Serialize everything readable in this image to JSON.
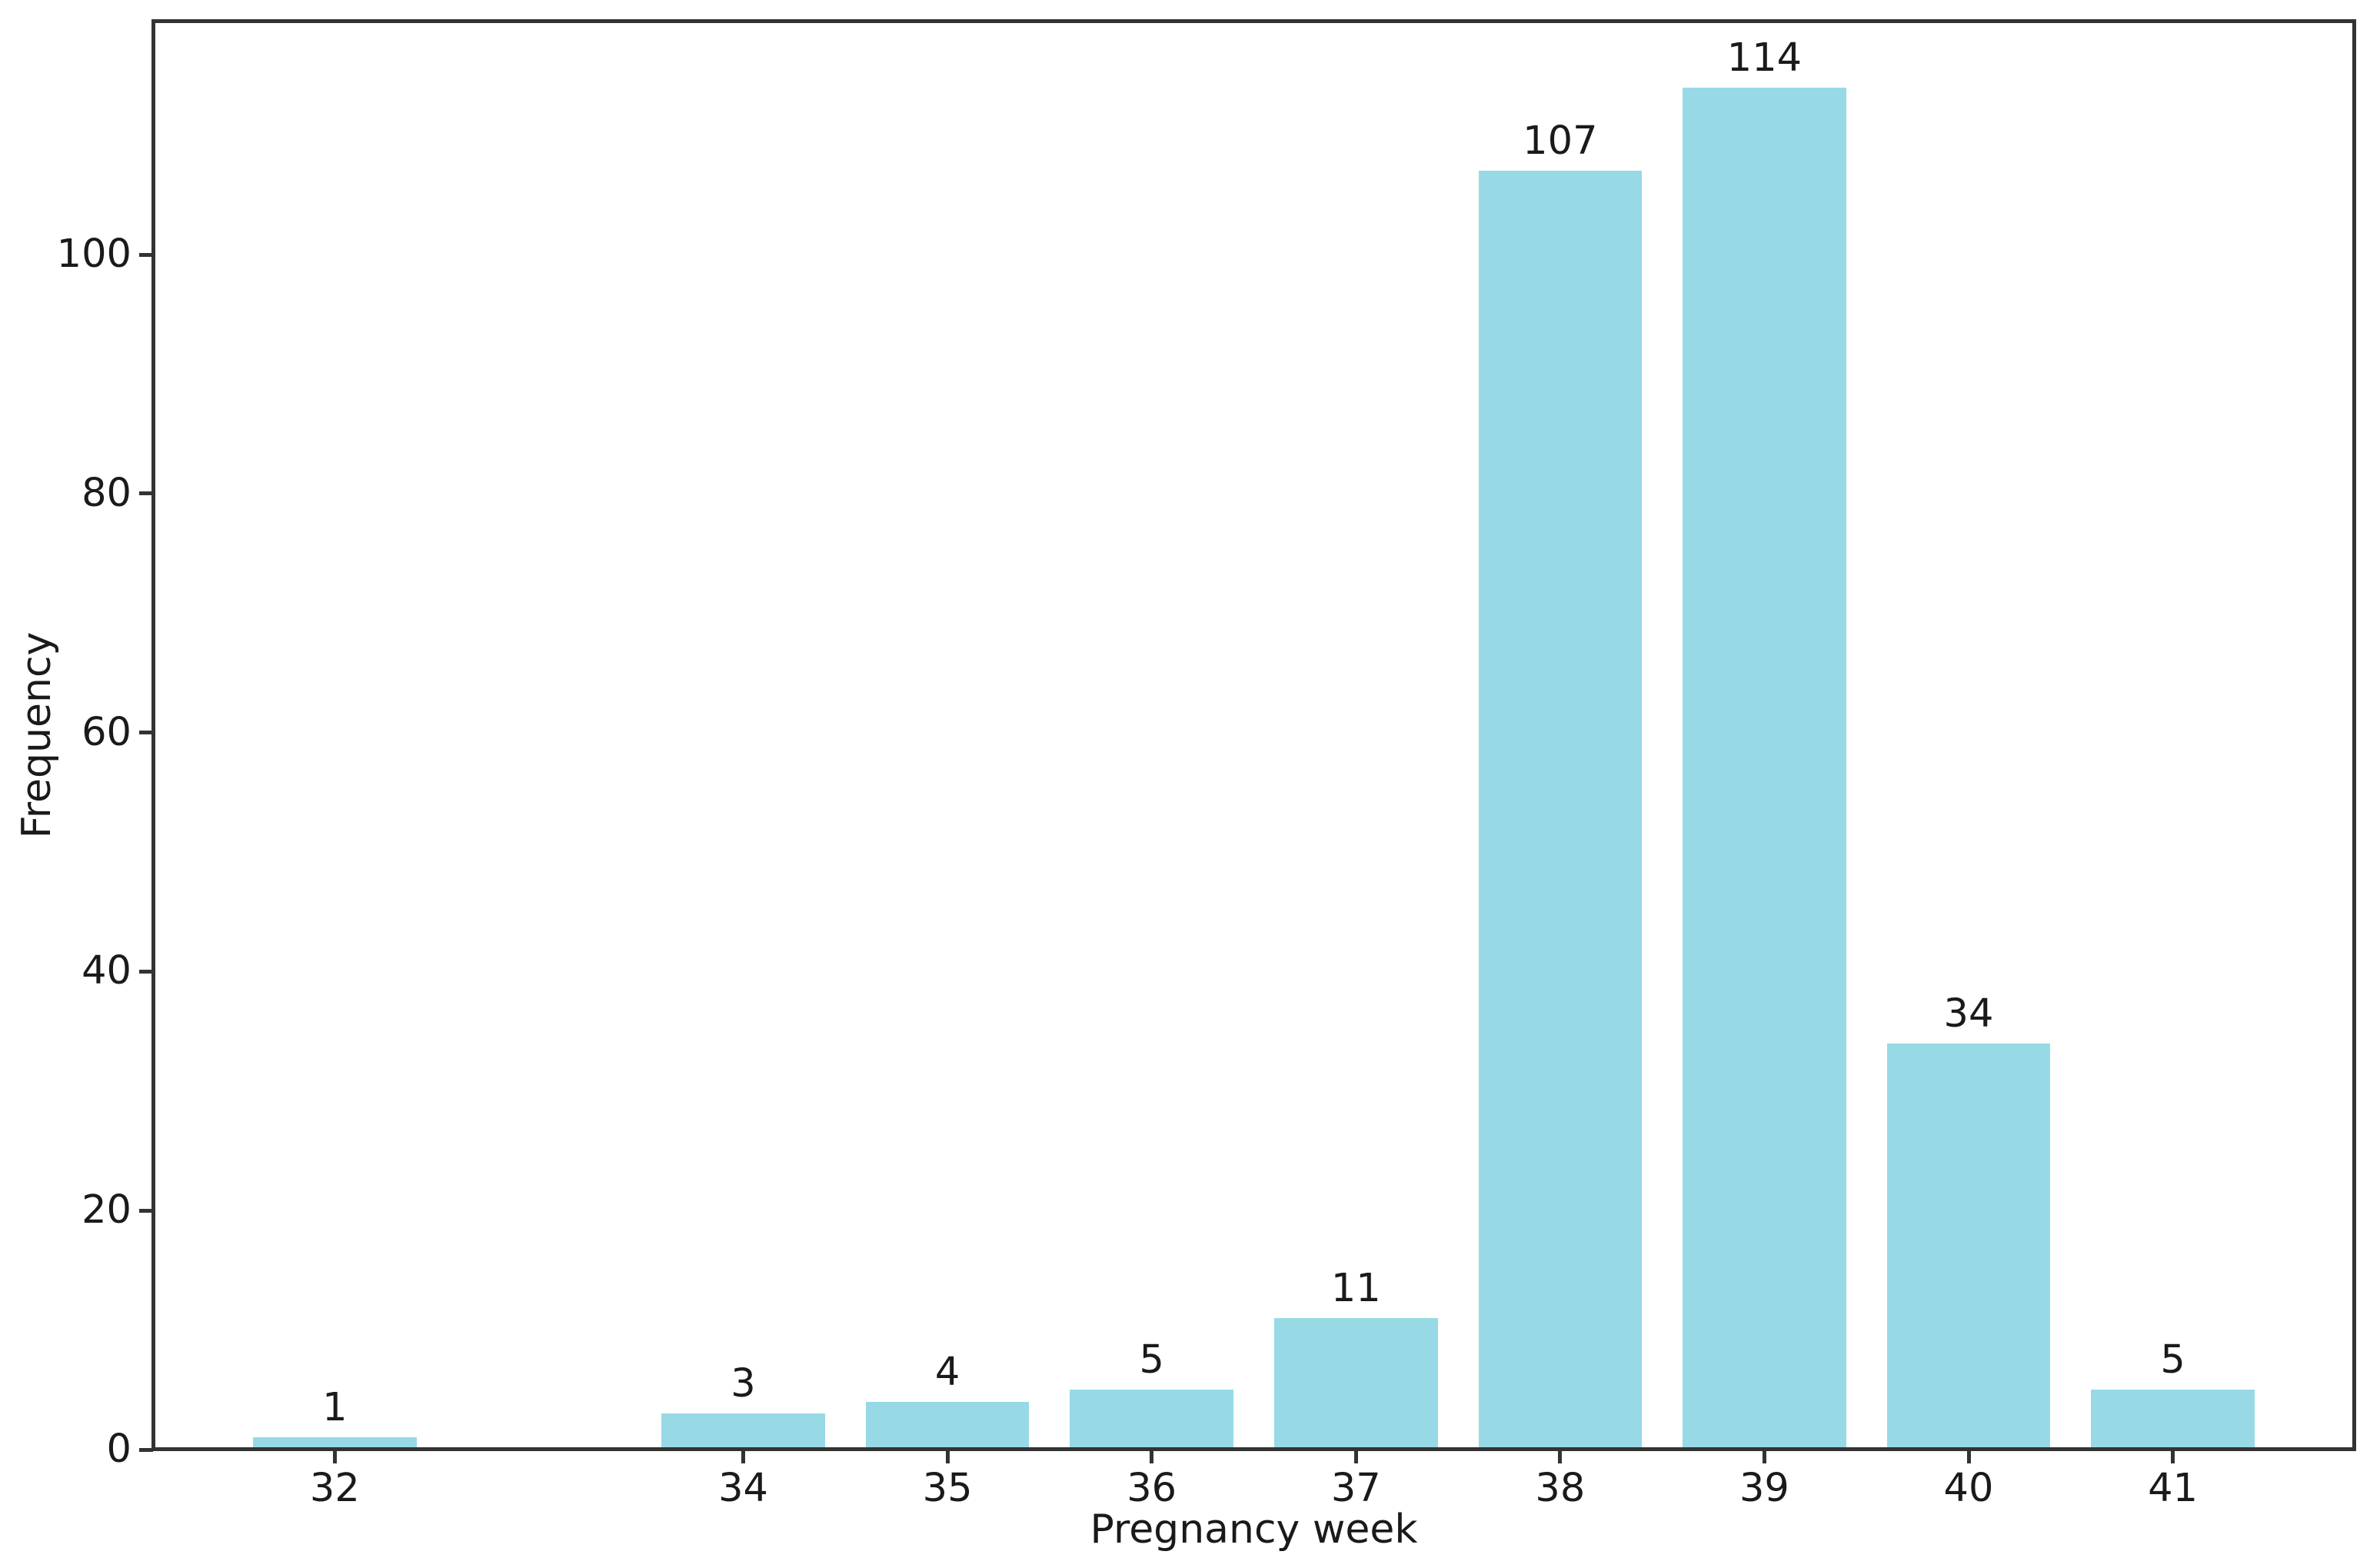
{
  "chart_data": {
    "type": "bar",
    "title": "",
    "xlabel": "Pregnancy week",
    "ylabel": "Frequency",
    "categories": [
      "32",
      "34",
      "35",
      "36",
      "37",
      "38",
      "39",
      "40",
      "41"
    ],
    "x_positions": [
      32,
      34,
      35,
      36,
      37,
      38,
      39,
      40,
      41
    ],
    "values": [
      1,
      3,
      4,
      5,
      11,
      107,
      114,
      34,
      5
    ],
    "bar_value_labels": [
      "1",
      "3",
      "4",
      "5",
      "11",
      "107",
      "114",
      "34",
      "5"
    ],
    "yticks": [
      0,
      20,
      40,
      60,
      80,
      100
    ],
    "ytick_labels": [
      "0",
      "20",
      "40",
      "60",
      "80",
      "100"
    ],
    "ylim": [
      0,
      120
    ],
    "xlim": [
      31.11,
      41.89
    ],
    "bar_width_units": 0.8,
    "grid": false,
    "legend": null,
    "colors": {
      "bar_fill": "#98d9e6",
      "axis_line": "#333333",
      "text": "#1a1a1a",
      "background": "#ffffff"
    }
  }
}
